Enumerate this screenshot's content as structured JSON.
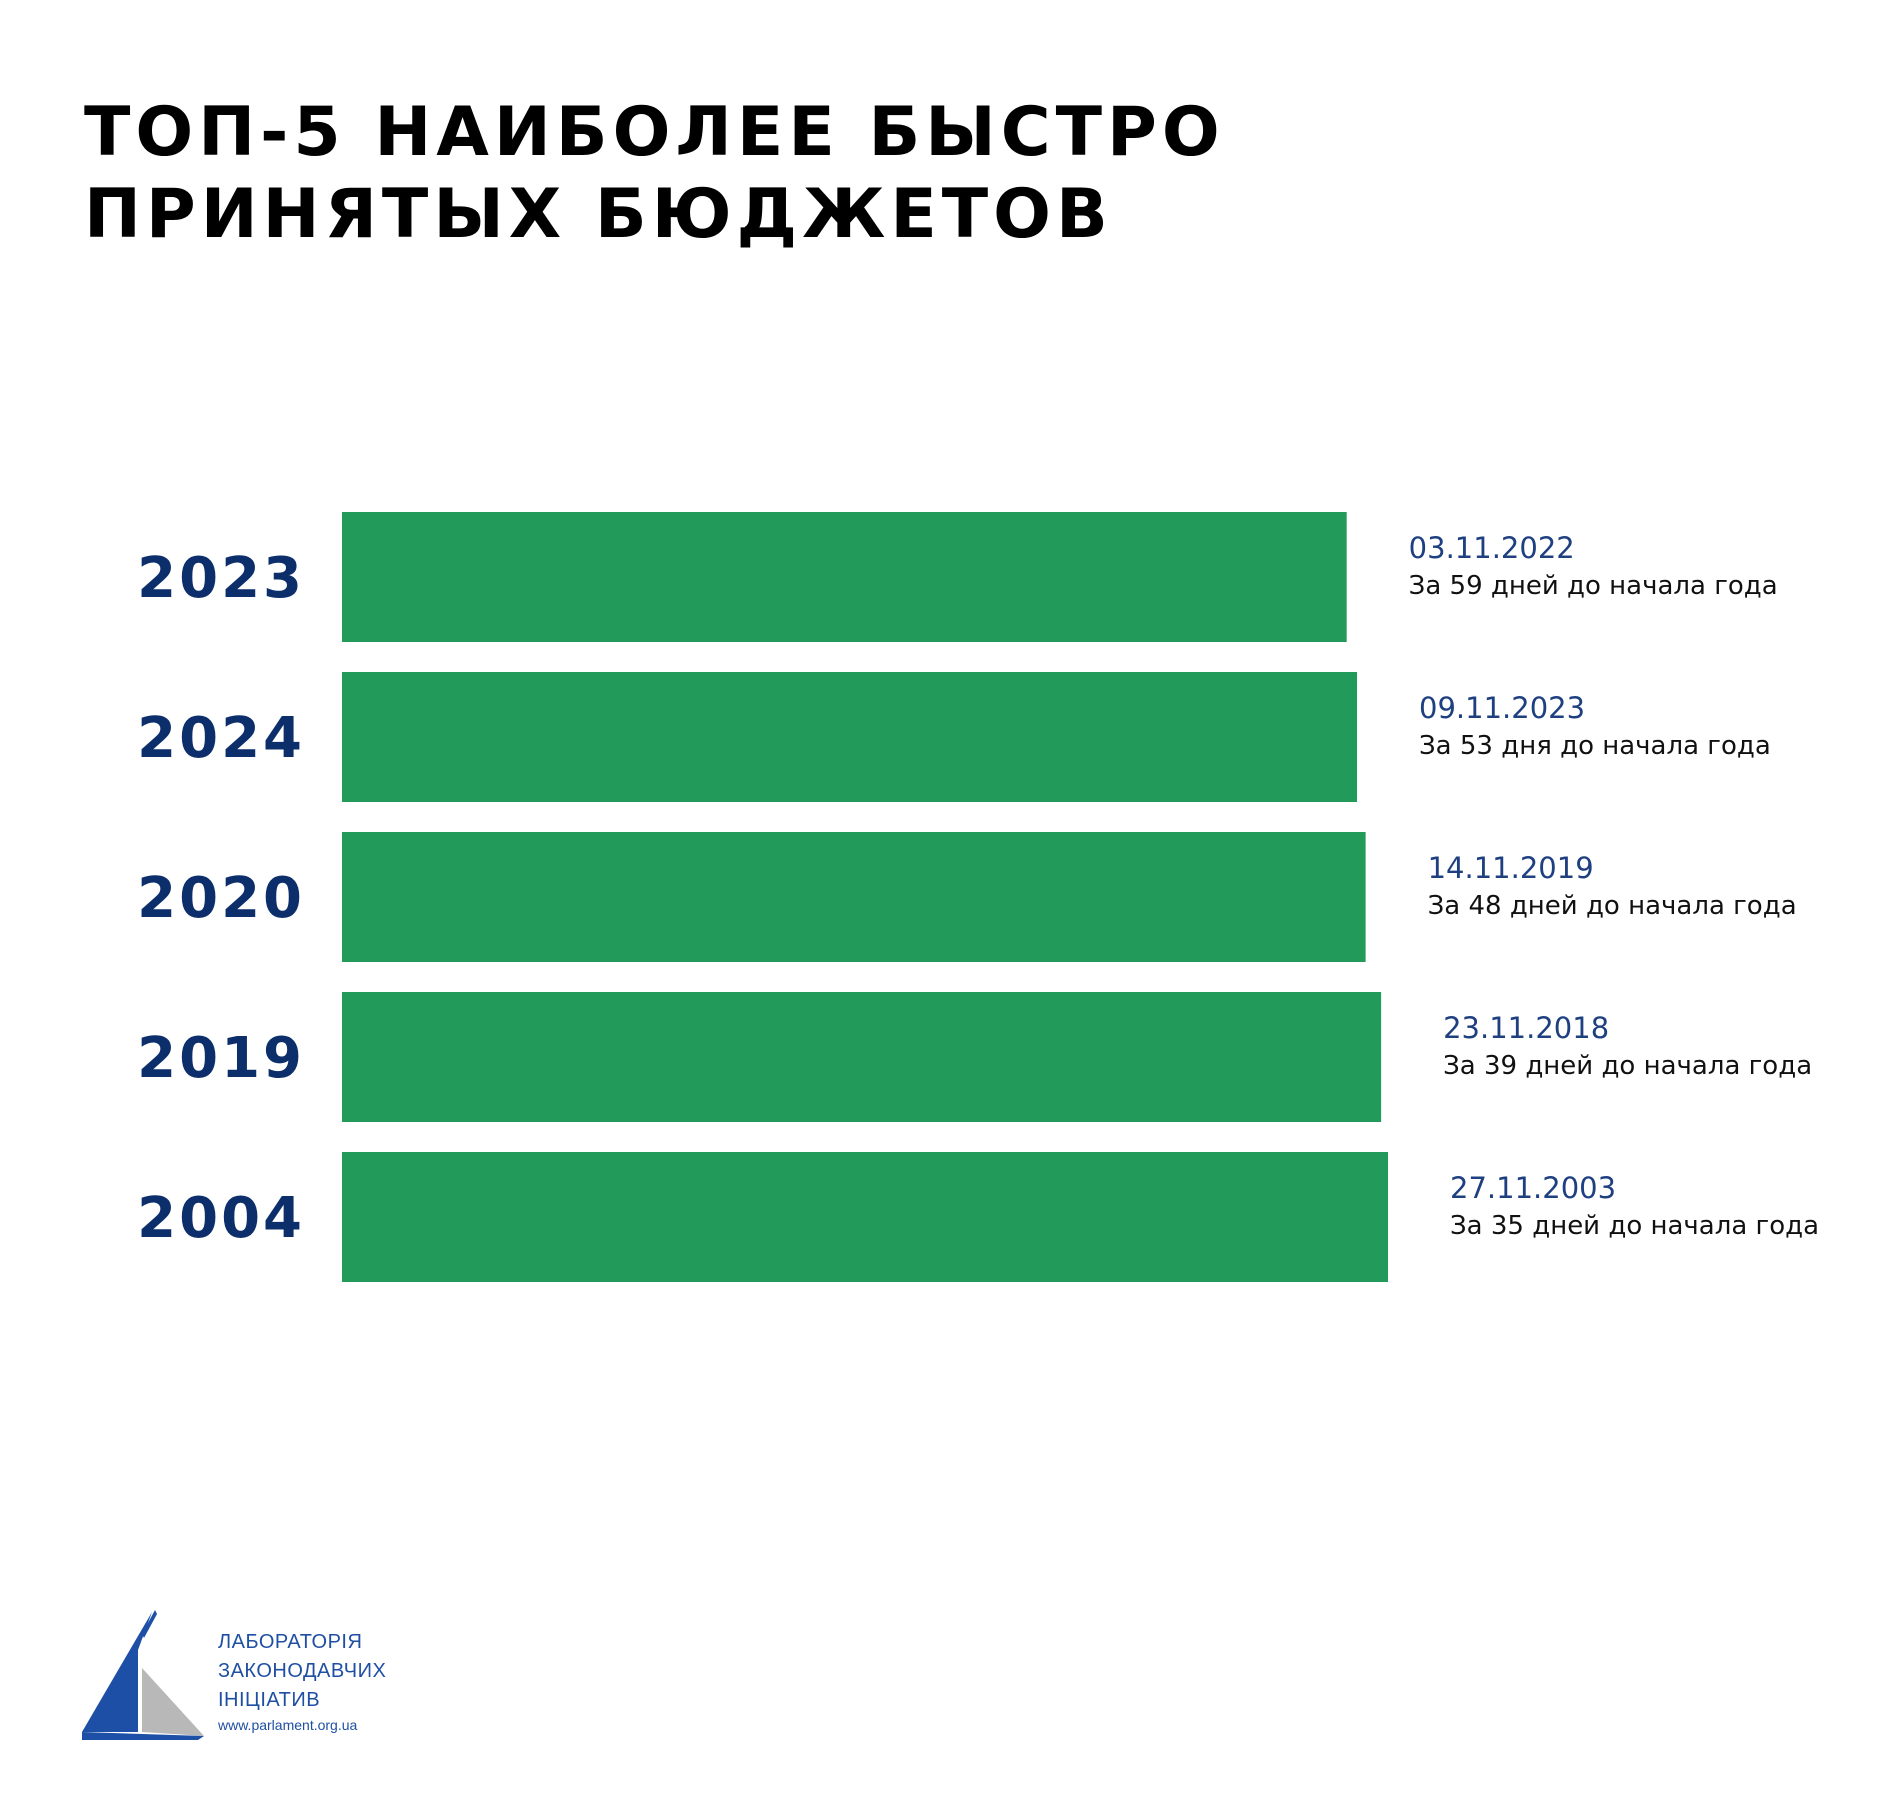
{
  "colors": {
    "bar": "#229a5a",
    "year": "#0c2f6b",
    "date": "#1e3f80",
    "days": "#111111"
  },
  "chart_data": {
    "type": "bar",
    "orientation": "horizontal",
    "title": [
      "ТОП-5 НАИБОЛЕЕ БЫСТРО",
      "ПРИНЯТЫХ БЮДЖЕТОВ"
    ],
    "categories": [
      "2023",
      "2024",
      "2020",
      "2019",
      "2004"
    ],
    "values": [
      59,
      53,
      48,
      39,
      35
    ],
    "annotations": [
      {
        "date": "03.11.2022",
        "text": "За 59 дней до начала года"
      },
      {
        "date": "09.11.2023",
        "text": "За 53 дня до начала года"
      },
      {
        "date": "14.11.2019",
        "text": "За 48 дней до начала года"
      },
      {
        "date": "23.11.2018",
        "text": "За 39 дней до начала года"
      },
      {
        "date": "27.11.2003",
        "text": "За 35 дней до начала года"
      }
    ],
    "grid": false,
    "legend": "none"
  },
  "logo": {
    "lines": [
      "ЛАБОРАТОРІЯ",
      "ЗАКОНОДАВЧИХ",
      "ІНІЦІАТИВ"
    ],
    "url": "www.parlament.org.ua"
  }
}
